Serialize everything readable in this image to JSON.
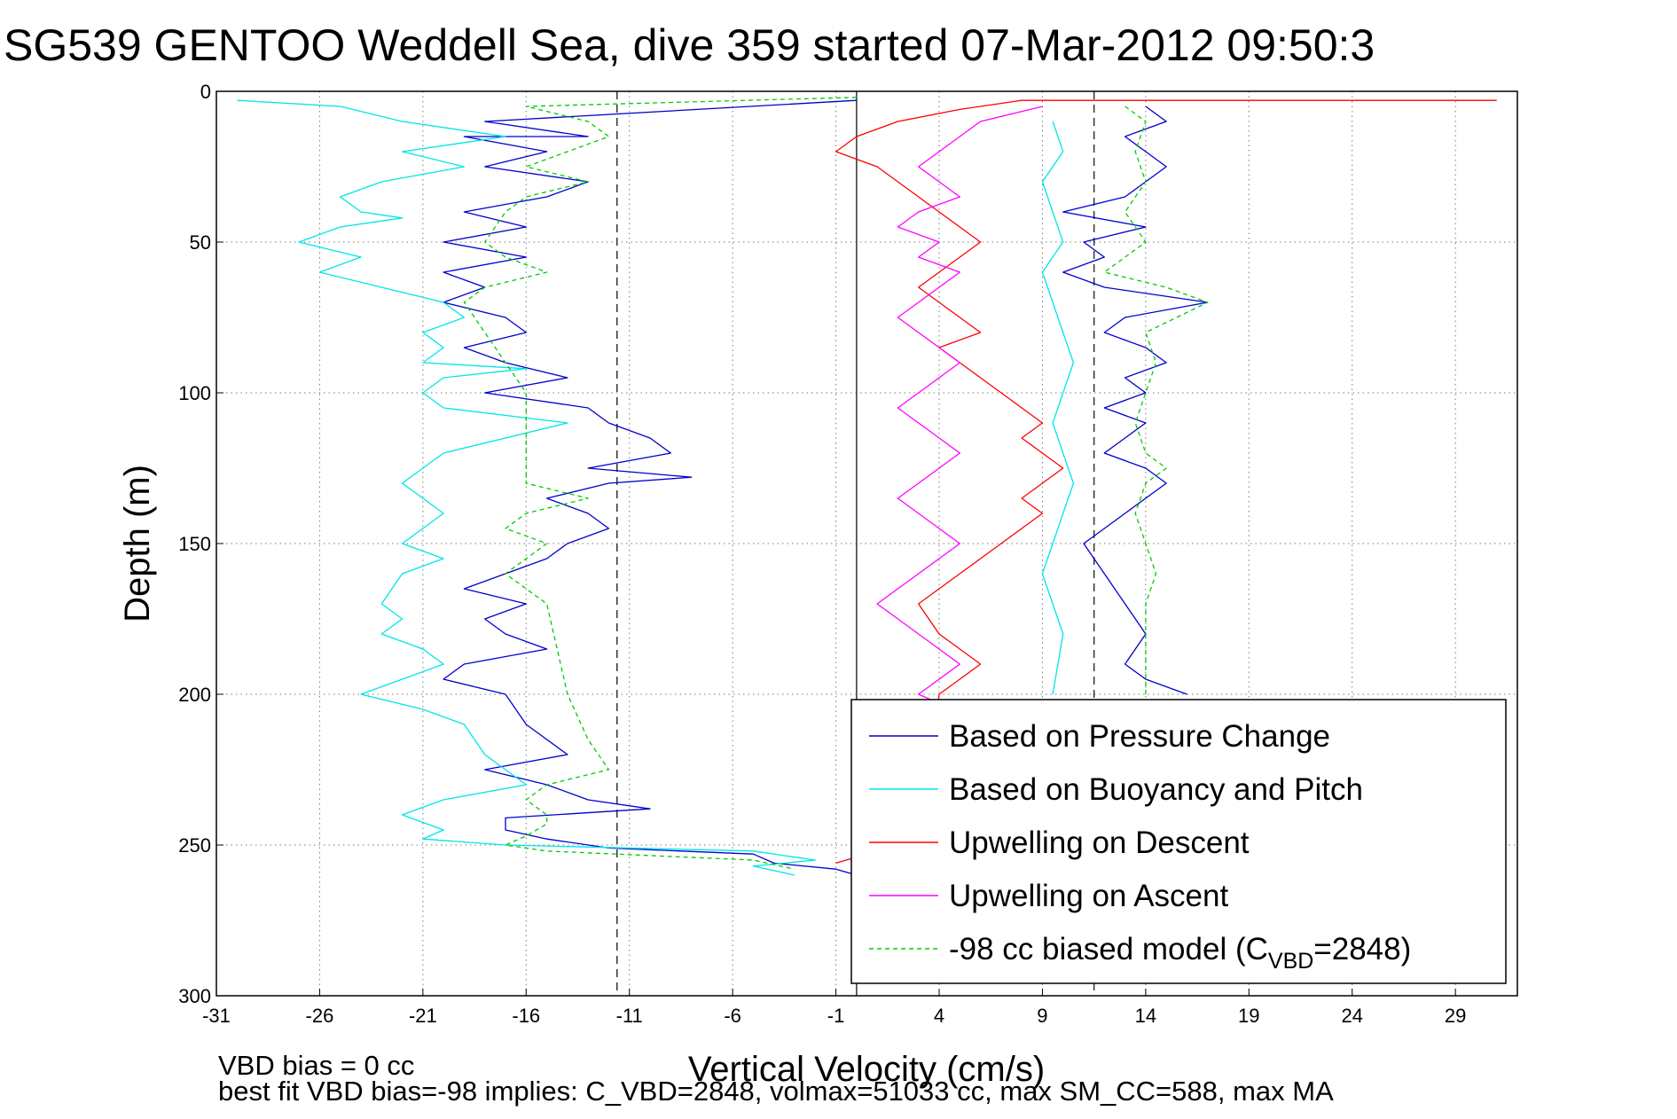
{
  "chart_data": {
    "type": "line",
    "title": "SG539 GENTOO Weddell Sea, dive 359 started 07-Mar-2012 09:50:3",
    "xlabel": "Vertical Velocity (cm/s)",
    "ylabel": "Depth (m)",
    "xlim": [
      -31,
      32
    ],
    "ylim": [
      0,
      300
    ],
    "y_reversed": true,
    "grid": true,
    "x_ticks": [
      -31,
      -26,
      -21,
      -16,
      -11,
      -6,
      -1,
      4,
      9,
      14,
      19,
      24,
      29
    ],
    "y_ticks": [
      0,
      50,
      100,
      150,
      200,
      250,
      300
    ],
    "reference_lines": [
      {
        "x": -11.6,
        "style": "dashed"
      },
      {
        "x": 0,
        "style": "solid"
      },
      {
        "x": 11.5,
        "style": "dashed"
      }
    ],
    "legend": {
      "position": "bottom-right",
      "entries": [
        {
          "label": "Based on Pressure Change",
          "color": "#0000cc",
          "style": "solid"
        },
        {
          "label": "Based on Buoyancy and Pitch",
          "color": "#00e5e5",
          "style": "solid"
        },
        {
          "label": "Upwelling on Descent",
          "color": "#ff0000",
          "style": "solid"
        },
        {
          "label": "Upwelling on Ascent",
          "color": "#ff00ff",
          "style": "solid"
        },
        {
          "label_prefix": "-98 cc biased model (C",
          "label_sub": "VBD",
          "label_suffix": "=2848)",
          "color": "#00cc00",
          "style": "dashed"
        }
      ]
    },
    "series": [
      {
        "name": "Based on Pressure Change",
        "color": "#0000cc",
        "x": [
          0,
          -18,
          -13,
          -19,
          -15,
          -18,
          -13,
          -15,
          -19,
          -16,
          -20,
          -16,
          -20,
          -18,
          -20,
          -17,
          -16,
          -19,
          -17,
          -14,
          -18,
          -13,
          -12,
          -10,
          -9,
          -13,
          -8,
          -12,
          -15,
          -13,
          -12,
          -14,
          -15,
          -17,
          -19,
          -16,
          -18,
          -17,
          -15,
          -19,
          -20,
          -17,
          -16,
          -14,
          -18,
          -15,
          -13,
          -10,
          -17,
          -17,
          -15,
          -12,
          -5,
          -4,
          -1,
          0
        ],
        "y": [
          3,
          10,
          15,
          15,
          20,
          25,
          30,
          35,
          40,
          45,
          50,
          55,
          60,
          65,
          70,
          75,
          80,
          85,
          90,
          95,
          100,
          105,
          110,
          115,
          120,
          125,
          128,
          130,
          135,
          140,
          145,
          150,
          155,
          160,
          165,
          170,
          175,
          180,
          185,
          190,
          195,
          200,
          210,
          220,
          225,
          230,
          235,
          238,
          241,
          245,
          248,
          251,
          253,
          256,
          258,
          260
        ]
      },
      {
        "name": "Based on Buoyancy and Pitch",
        "color": "#00e5e5",
        "x": [
          -30,
          -25,
          -22,
          -17,
          -22,
          -19,
          -23,
          -25,
          -24,
          -22,
          -25,
          -27,
          -24,
          -26,
          -23,
          -20,
          -19,
          -21,
          -20,
          -21,
          -16,
          -20,
          -21,
          -20,
          -14,
          -20,
          -21,
          -22,
          -21,
          -20,
          -21,
          -22,
          -20,
          -22,
          -23,
          -22,
          -23,
          -21,
          -20,
          -22,
          -24,
          -21,
          -19,
          -18,
          -16,
          -20,
          -22,
          -20,
          -21,
          -17,
          -5,
          -2,
          -5,
          -3
        ],
        "y": [
          3,
          5,
          10,
          15,
          20,
          25,
          30,
          35,
          40,
          42,
          45,
          50,
          55,
          60,
          65,
          70,
          75,
          80,
          85,
          90,
          92,
          95,
          100,
          105,
          110,
          120,
          125,
          130,
          135,
          140,
          145,
          150,
          155,
          160,
          170,
          175,
          180,
          185,
          190,
          195,
          200,
          205,
          210,
          220,
          230,
          235,
          240,
          245,
          248,
          250,
          252,
          255,
          257,
          260
        ]
      },
      {
        "name": "Upwelling on Descent",
        "color": "#ff0000",
        "x": [
          31,
          20,
          8,
          5,
          2,
          0,
          -1,
          1,
          2,
          3,
          4,
          5,
          6,
          5,
          4,
          3,
          4,
          5,
          6,
          4,
          5,
          6,
          7,
          8,
          9,
          8,
          9,
          10,
          9,
          8,
          9,
          8,
          7,
          6,
          5,
          4,
          3,
          4,
          5,
          6,
          5,
          4,
          3,
          0,
          -1
        ],
        "y": [
          3,
          3,
          3,
          6,
          10,
          15,
          20,
          25,
          30,
          35,
          40,
          45,
          50,
          55,
          60,
          65,
          70,
          75,
          80,
          85,
          90,
          95,
          100,
          105,
          110,
          115,
          120,
          125,
          130,
          135,
          140,
          145,
          150,
          155,
          160,
          165,
          170,
          180,
          185,
          190,
          195,
          200,
          252,
          254,
          256
        ]
      },
      {
        "name": "Upwelling on Ascent",
        "color": "#ff00ff",
        "x": [
          9,
          6,
          5,
          4,
          3,
          4,
          5,
          3,
          2,
          4,
          3,
          5,
          4,
          3,
          2,
          3,
          4,
          5,
          4,
          3,
          2,
          3,
          4,
          5,
          4,
          3,
          2,
          3,
          4,
          5,
          4,
          3,
          2,
          1,
          2,
          3,
          4,
          5,
          4,
          3,
          4,
          5,
          4
        ],
        "y": [
          5,
          10,
          15,
          20,
          25,
          30,
          35,
          40,
          45,
          50,
          55,
          60,
          65,
          70,
          75,
          80,
          85,
          90,
          95,
          100,
          105,
          110,
          115,
          120,
          125,
          130,
          135,
          140,
          145,
          150,
          155,
          160,
          165,
          170,
          175,
          180,
          185,
          190,
          195,
          200,
          203,
          206,
          209
        ]
      },
      {
        "name": "-98 cc biased model (CVBD=2848)",
        "color": "#00cc00",
        "x": [
          0,
          -16,
          -13,
          -12,
          -14,
          -16,
          -13,
          -16,
          -17,
          -18,
          -17,
          -15,
          -18,
          -19,
          -18,
          -17,
          -16,
          -16,
          -16,
          -16,
          -16,
          -13,
          -16,
          -17,
          -15,
          -16,
          -17,
          -16,
          -15,
          -14,
          -13,
          -12,
          -15,
          -16,
          -15,
          -15,
          -16,
          -17,
          -15,
          -5,
          -3
        ],
        "y": [
          2,
          5,
          10,
          15,
          20,
          25,
          30,
          35,
          40,
          50,
          55,
          60,
          65,
          70,
          80,
          90,
          100,
          110,
          120,
          125,
          130,
          135,
          140,
          145,
          150,
          155,
          160,
          165,
          170,
          200,
          215,
          225,
          230,
          235,
          240,
          243,
          247,
          250,
          252,
          255,
          258
        ]
      },
      {
        "name": "Based on Pressure Change (ascent)",
        "color": "#0000cc",
        "x": [
          14,
          15,
          13,
          14,
          15,
          14,
          13,
          10,
          14,
          11,
          12,
          10,
          12,
          17,
          13,
          12,
          14,
          15,
          13,
          14,
          12,
          14,
          13,
          12,
          14,
          15,
          13,
          12,
          11,
          12,
          13,
          14,
          13,
          14,
          16
        ],
        "y": [
          5,
          10,
          15,
          20,
          25,
          30,
          35,
          40,
          45,
          50,
          55,
          60,
          65,
          70,
          75,
          80,
          85,
          90,
          95,
          100,
          105,
          110,
          115,
          120,
          125,
          130,
          140,
          145,
          150,
          160,
          170,
          180,
          190,
          195,
          200
        ]
      },
      {
        "name": "Based on Buoyancy and Pitch (ascent)",
        "color": "#00e5e5",
        "x": [
          9.5,
          10,
          9,
          9.5,
          10,
          9,
          9.5,
          10,
          10.5,
          10,
          9.5,
          10,
          10.5,
          10,
          9.5,
          9,
          9.5,
          10,
          9.5
        ],
        "y": [
          10,
          20,
          30,
          40,
          50,
          60,
          70,
          80,
          90,
          100,
          110,
          120,
          130,
          140,
          150,
          160,
          170,
          180,
          200
        ]
      },
      {
        "name": "-98 cc biased model (ascent)",
        "color": "#00cc00",
        "x": [
          13,
          14,
          13.5,
          14,
          13,
          14,
          12,
          15,
          17,
          14,
          14.5,
          14,
          13.5,
          14,
          15,
          14,
          13.5,
          14,
          14.5,
          14,
          14
        ],
        "y": [
          5,
          10,
          20,
          30,
          40,
          50,
          60,
          65,
          70,
          80,
          90,
          100,
          110,
          120,
          125,
          130,
          140,
          150,
          160,
          170,
          200
        ]
      }
    ],
    "annotations": [
      {
        "text": "VBD bias = 0 cc"
      },
      {
        "text": "best fit VBD bias=-98 implies: C_VBD=2848, volmax=51033 cc, max SM_CC=588, max MA"
      }
    ]
  }
}
